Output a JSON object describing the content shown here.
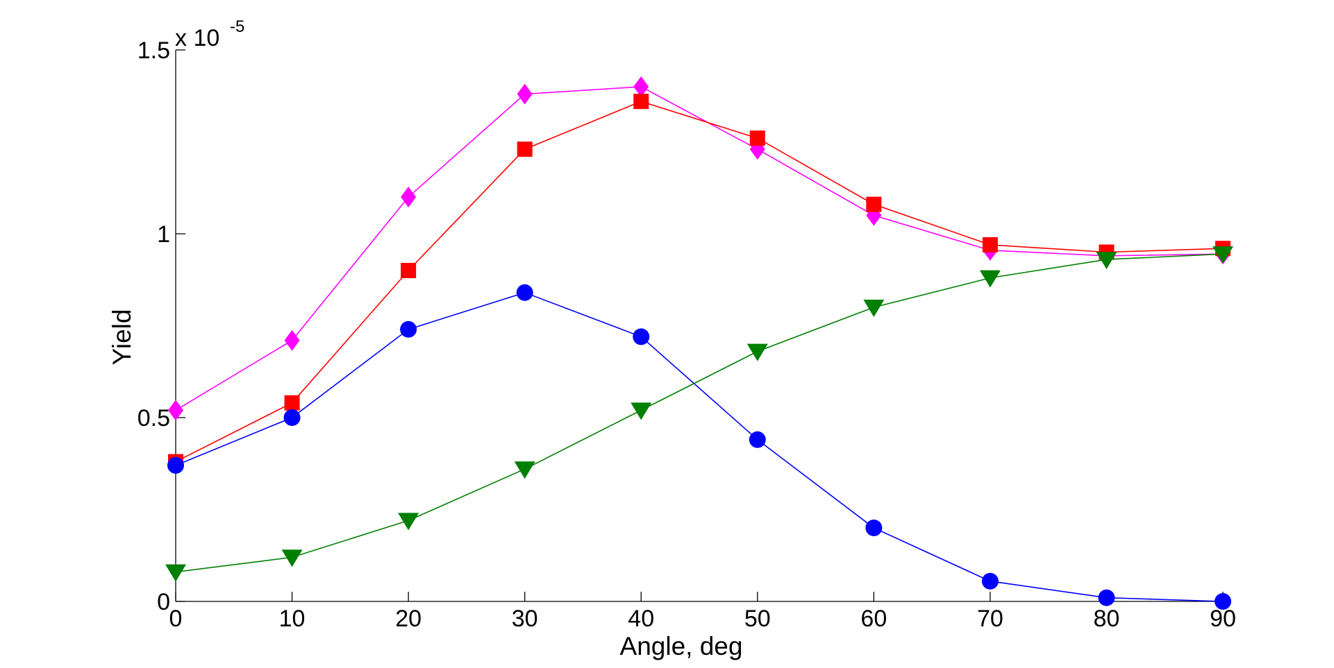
{
  "chart_data": {
    "type": "line",
    "title": "",
    "xlabel": "Angle, deg",
    "ylabel": "Yield",
    "y_multiplier_text": "x 10",
    "y_multiplier_exponent": "-5",
    "xlim": [
      0,
      90
    ],
    "ylim": [
      0,
      1.5
    ],
    "x_ticks": [
      0,
      10,
      20,
      30,
      40,
      50,
      60,
      70,
      80,
      90
    ],
    "x_tick_labels": [
      "0",
      "10",
      "20",
      "30",
      "40",
      "50",
      "60",
      "70",
      "80",
      "90"
    ],
    "y_ticks": [
      0,
      0.5,
      1,
      1.5
    ],
    "y_tick_labels": [
      "0",
      "0.5",
      "1",
      "1.5"
    ],
    "grid": false,
    "x": [
      0,
      10,
      20,
      30,
      40,
      50,
      60,
      70,
      80,
      90
    ],
    "series": [
      {
        "name": "magenta-diamond",
        "color": "#ff00ff",
        "marker": "diamond",
        "values": [
          0.52,
          0.71,
          1.1,
          1.38,
          1.4,
          1.23,
          1.05,
          0.955,
          0.94,
          0.945
        ]
      },
      {
        "name": "red-square",
        "color": "#ff0000",
        "marker": "square",
        "values": [
          0.38,
          0.54,
          0.9,
          1.23,
          1.36,
          1.26,
          1.08,
          0.97,
          0.95,
          0.96
        ]
      },
      {
        "name": "blue-circle",
        "color": "#0000ff",
        "marker": "circle",
        "values": [
          0.37,
          0.5,
          0.74,
          0.84,
          0.72,
          0.44,
          0.2,
          0.055,
          0.01,
          0.0
        ]
      },
      {
        "name": "green-triangle",
        "color": "#007f00",
        "marker": "triangle-down",
        "values": [
          0.08,
          0.12,
          0.22,
          0.36,
          0.52,
          0.68,
          0.8,
          0.88,
          0.93,
          0.945
        ]
      }
    ]
  }
}
